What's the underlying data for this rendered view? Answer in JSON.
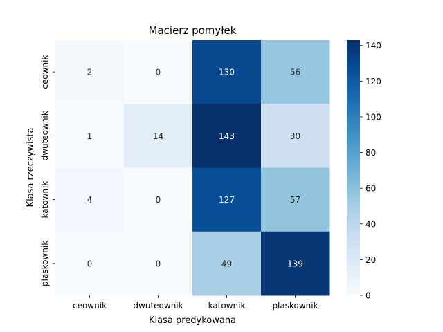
{
  "chart_data": {
    "type": "heatmap",
    "title": "Macierz pomyłek",
    "xlabel": "Klasa predykowana",
    "ylabel": "Klasa rzeczywista",
    "x_categories": [
      "ceownik",
      "dwuteownik",
      "katownik",
      "plaskownik"
    ],
    "y_categories": [
      "ceownik",
      "dwuteownik",
      "katownik",
      "plaskownik"
    ],
    "values": [
      [
        2,
        0,
        130,
        56
      ],
      [
        1,
        14,
        143,
        30
      ],
      [
        4,
        0,
        127,
        57
      ],
      [
        0,
        0,
        49,
        139
      ]
    ],
    "colormap": "Blues",
    "colorbar": {
      "min": 0,
      "max": 143,
      "ticks": [
        0,
        20,
        40,
        60,
        80,
        100,
        120,
        140
      ]
    },
    "colors": {
      "low": "#f7fbff",
      "high": "#08306b"
    }
  }
}
